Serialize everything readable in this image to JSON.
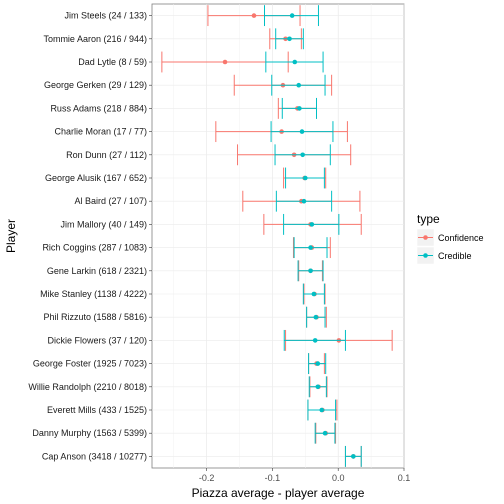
{
  "chart_data": {
    "type": "errorbar",
    "xlabel": "Piazza average - player average",
    "ylabel": "Player",
    "xlim": [
      -0.283,
      0.1
    ],
    "x_ticks": [
      -0.2,
      -0.1,
      0.0,
      0.1
    ],
    "x_tick_labels": [
      "-0.2",
      "-0.1",
      "0.0",
      "0.1"
    ],
    "grid": true,
    "legend": {
      "title": "type",
      "position": "right",
      "entries": [
        {
          "key": "Confidence",
          "label": "Confidence",
          "color": "#F8766D"
        },
        {
          "key": "Credible",
          "label": "Credible",
          "color": "#00BFC4"
        }
      ]
    },
    "players": [
      "Jim Steels (24 / 133)",
      "Tommie Aaron (216 / 944)",
      "Dad Lytle (8 / 59)",
      "George Gerken (29 / 129)",
      "Russ Adams (218 / 884)",
      "Charlie Moran (17 / 77)",
      "Ron Dunn (27 / 112)",
      "George Alusik (167 / 652)",
      "Al Baird (27 / 107)",
      "Jim Mallory (40 / 149)",
      "Rich Coggins (287 / 1083)",
      "Gene Larkin (618 / 2321)",
      "Mike Stanley (1138 / 4222)",
      "Phil Rizzuto (1588 / 5816)",
      "Dickie Flowers (37 / 120)",
      "George Foster (1925 / 7023)",
      "Willie Randolph (2210 / 8018)",
      "Everett Mills (433 / 1525)",
      "Danny Murphy (1563 / 5399)",
      "Cap Anson (3418 / 10277)"
    ],
    "series": [
      {
        "name": "Confidence",
        "estimate": [
          -0.128,
          -0.08,
          -0.172,
          -0.084,
          -0.062,
          -0.086,
          -0.067,
          -0.051,
          -0.056,
          -0.042,
          -0.04,
          -0.042,
          -0.036,
          -0.033,
          0.001,
          -0.033,
          -0.03,
          -0.024,
          -0.019,
          0.023
        ],
        "lower": [
          -0.198,
          -0.104,
          -0.268,
          -0.158,
          -0.091,
          -0.186,
          -0.153,
          -0.083,
          -0.145,
          -0.113,
          -0.068,
          -0.06,
          -0.052,
          -0.048,
          -0.08,
          -0.045,
          -0.043,
          -0.046,
          -0.034,
          0.011
        ],
        "upper": [
          -0.058,
          -0.056,
          -0.076,
          -0.01,
          -0.033,
          0.014,
          0.019,
          -0.019,
          0.033,
          0.035,
          -0.012,
          -0.024,
          -0.02,
          -0.018,
          0.082,
          -0.021,
          -0.017,
          -0.002,
          -0.004,
          0.035
        ]
      },
      {
        "name": "Credible",
        "estimate": [
          -0.07,
          -0.074,
          -0.066,
          -0.06,
          -0.059,
          -0.055,
          -0.054,
          -0.05,
          -0.052,
          -0.04,
          -0.042,
          -0.042,
          -0.037,
          -0.034,
          -0.035,
          -0.031,
          -0.031,
          -0.025,
          -0.02,
          0.023
        ],
        "lower": [
          -0.112,
          -0.095,
          -0.11,
          -0.101,
          -0.085,
          -0.102,
          -0.096,
          -0.08,
          -0.094,
          -0.083,
          -0.067,
          -0.061,
          -0.053,
          -0.048,
          -0.082,
          -0.045,
          -0.044,
          -0.046,
          -0.035,
          0.011
        ],
        "upper": [
          -0.03,
          -0.053,
          -0.023,
          -0.02,
          -0.033,
          -0.008,
          -0.012,
          -0.021,
          -0.01,
          0.001,
          -0.017,
          -0.023,
          -0.021,
          -0.02,
          0.011,
          -0.019,
          -0.018,
          -0.004,
          -0.005,
          0.035
        ]
      }
    ]
  }
}
